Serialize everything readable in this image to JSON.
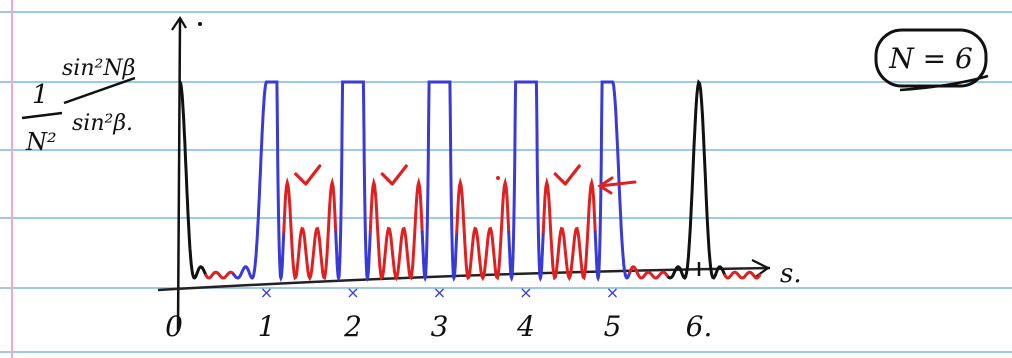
{
  "page": {
    "background": "#ffffff",
    "ruled_line_color": "#9ec9ea",
    "margin_line_color": "#f0a6d4"
  },
  "figure": {
    "y_axis_label": {
      "numerator": "1",
      "numerator_fraction_top": "sin²Nβ",
      "denominator": "N²",
      "denominator_fraction_bottom": "sin²β."
    },
    "x_axis_label": "s.",
    "annotation_boxed": "N = 6",
    "x_ticks": [
      {
        "value": 0,
        "label": "0"
      },
      {
        "value": 1,
        "label": "1"
      },
      {
        "value": 2,
        "label": "2"
      },
      {
        "value": 3,
        "label": "3"
      },
      {
        "value": 4,
        "label": "4"
      },
      {
        "value": 5,
        "label": "5"
      },
      {
        "value": 6,
        "label": "6."
      }
    ],
    "check_marks": [
      1.5,
      2.5,
      4.5
    ],
    "arrow_to_peak": 4.5,
    "curve": {
      "N": 6,
      "colors": {
        "principal_peak": "#111111",
        "red_segment": "#e02020",
        "blue_segment": "#3a3ad8",
        "axis": "#111111",
        "mark": "#e02020"
      }
    }
  }
}
